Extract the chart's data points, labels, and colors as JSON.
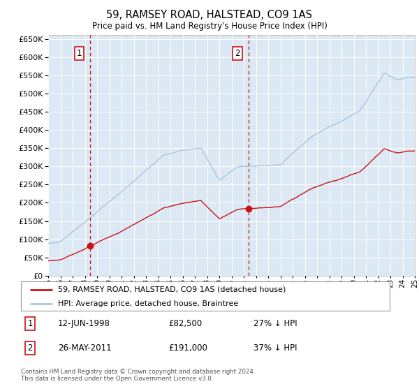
{
  "title": "59, RAMSEY ROAD, HALSTEAD, CO9 1AS",
  "subtitle": "Price paid vs. HM Land Registry's House Price Index (HPI)",
  "hpi_color": "#a8c4e0",
  "price_color": "#cc1111",
  "background_color": "#dce9f5",
  "plot_bg": "#ffffff",
  "ylim": [
    0,
    660000
  ],
  "yticks": [
    0,
    50000,
    100000,
    150000,
    200000,
    250000,
    300000,
    350000,
    400000,
    450000,
    500000,
    550000,
    600000,
    650000
  ],
  "sale1_date": "12-JUN-1998",
  "sale1_price": 82500,
  "sale1_label": "27% ↓ HPI",
  "sale1_year": 1998.45,
  "sale2_date": "26-MAY-2011",
  "sale2_price": 191000,
  "sale2_label": "37% ↓ HPI",
  "sale2_year": 2011.39,
  "legend_line1": "59, RAMSEY ROAD, HALSTEAD, CO9 1AS (detached house)",
  "legend_line2": "HPI: Average price, detached house, Braintree",
  "footer": "Contains HM Land Registry data © Crown copyright and database right 2024.\nThis data is licensed under the Open Government Licence v3.0.",
  "xmin": 1995,
  "xmax": 2025
}
